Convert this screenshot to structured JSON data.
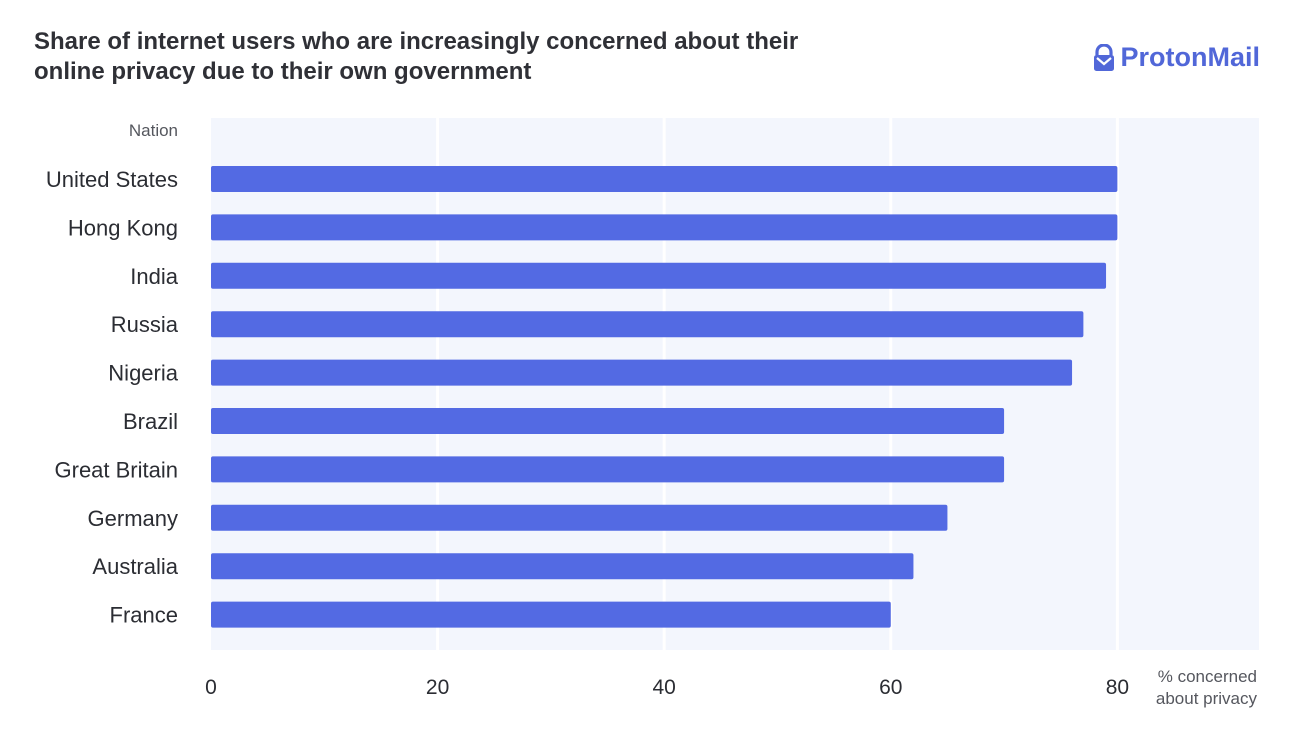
{
  "chart_data": {
    "type": "bar",
    "orientation": "horizontal",
    "title": "Share of internet users who are increasingly concerned about their online privacy due to their own government",
    "ylabel": "Nation",
    "xlabel_lines": [
      "% concerned",
      "about privacy"
    ],
    "categories": [
      "United States",
      "Hong Kong",
      "India",
      "Russia",
      "Nigeria",
      "Brazil",
      "Great Britain",
      "Germany",
      "Australia",
      "France"
    ],
    "values": [
      80,
      80,
      79,
      77,
      76,
      70,
      70,
      65,
      62,
      60
    ],
    "xlim": [
      0,
      92.5
    ],
    "xticks": [
      0,
      20,
      40,
      60,
      80
    ],
    "grid": true,
    "bar_color": "#536ae3",
    "plot_background": "#f3f6fd"
  },
  "brand": {
    "name": "ProtonMail",
    "icon": "lock-icon",
    "color": "#5167d8"
  }
}
